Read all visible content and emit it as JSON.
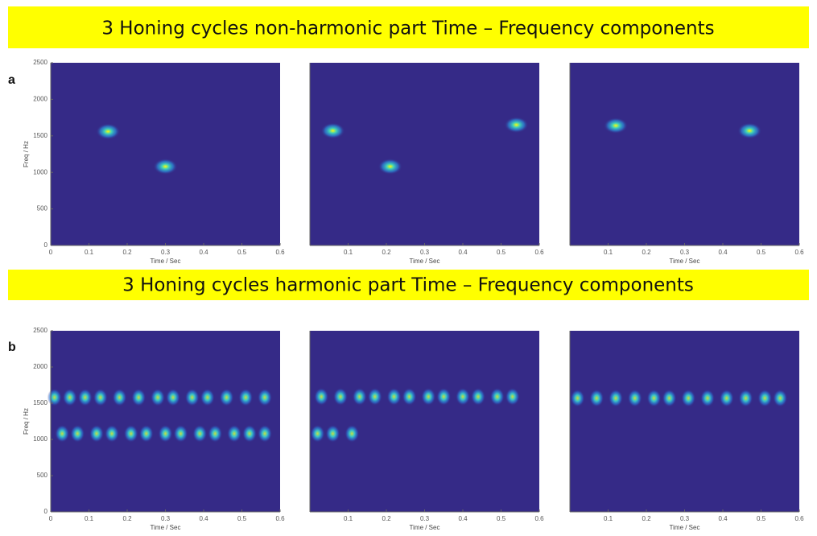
{
  "figure": {
    "rows": [
      {
        "label": "a",
        "title": "3 Honing cycles non-harmonic part Time – Frequency components"
      },
      {
        "label": "b",
        "title": "3 Honing cycles harmonic part Time – Frequency components"
      }
    ]
  },
  "chart_data": [
    {
      "type": "spectrogram",
      "xlabel": "Time / Sec",
      "ylabel": "Freq / Hz",
      "xlim": [
        0,
        0.6
      ],
      "ylim": [
        0,
        2500
      ],
      "xticks": [
        0,
        0.1,
        0.2,
        0.3,
        0.4,
        0.5,
        0.6
      ],
      "yticks": [
        0,
        500,
        1000,
        1500,
        2000,
        2500
      ],
      "peaks": {
        "x": [
          0.15,
          0.3
        ],
        "y": [
          1560,
          1080
        ]
      }
    },
    {
      "type": "spectrogram",
      "xlabel": "Time / Sec",
      "xlim": [
        0,
        0.6
      ],
      "ylim": [
        0,
        2500
      ],
      "xticks": [
        0.1,
        0.2,
        0.3,
        0.4,
        0.5,
        0.6
      ],
      "peaks": {
        "x": [
          0.06,
          0.21,
          0.54
        ],
        "y": [
          1570,
          1080,
          1650
        ]
      }
    },
    {
      "type": "spectrogram",
      "xlabel": "Time / Sec",
      "xlim": [
        0,
        0.6
      ],
      "ylim": [
        0,
        2500
      ],
      "xticks": [
        0.1,
        0.2,
        0.3,
        0.4,
        0.5,
        0.6
      ],
      "peaks": {
        "x": [
          0.12,
          0.47
        ],
        "y": [
          1640,
          1570
        ]
      }
    },
    {
      "type": "spectrogram",
      "xlabel": "Time / Sec",
      "ylabel": "Freq / Hz",
      "xlim": [
        0,
        0.6
      ],
      "ylim": [
        0,
        2500
      ],
      "xticks": [
        0,
        0.1,
        0.2,
        0.3,
        0.4,
        0.5,
        0.6
      ],
      "yticks": [
        0,
        500,
        1000,
        1500,
        2000,
        2500
      ],
      "peaks": {
        "x": [
          0.01,
          0.05,
          0.09,
          0.13,
          0.18,
          0.23,
          0.28,
          0.32,
          0.37,
          0.41,
          0.46,
          0.51,
          0.56,
          0.03,
          0.07,
          0.12,
          0.16,
          0.21,
          0.25,
          0.3,
          0.34,
          0.39,
          0.43,
          0.48,
          0.52,
          0.56
        ],
        "y": [
          1580,
          1580,
          1580,
          1580,
          1580,
          1580,
          1580,
          1580,
          1580,
          1580,
          1580,
          1580,
          1580,
          1080,
          1080,
          1080,
          1080,
          1080,
          1080,
          1080,
          1080,
          1080,
          1080,
          1080,
          1080,
          1080
        ]
      }
    },
    {
      "type": "spectrogram",
      "xlabel": "Time / Sec",
      "xlim": [
        0,
        0.6
      ],
      "ylim": [
        0,
        2500
      ],
      "xticks": [
        0.1,
        0.2,
        0.3,
        0.4,
        0.5,
        0.6
      ],
      "peaks": {
        "x": [
          0.03,
          0.08,
          0.13,
          0.17,
          0.22,
          0.26,
          0.31,
          0.35,
          0.4,
          0.44,
          0.49,
          0.53,
          0.02,
          0.06,
          0.11
        ],
        "y": [
          1590,
          1590,
          1590,
          1590,
          1590,
          1590,
          1590,
          1590,
          1590,
          1590,
          1590,
          1590,
          1080,
          1080,
          1080
        ]
      }
    },
    {
      "type": "spectrogram",
      "xlabel": "Time / Sec",
      "xlim": [
        0,
        0.6
      ],
      "ylim": [
        0,
        2500
      ],
      "xticks": [
        0.1,
        0.2,
        0.3,
        0.4,
        0.5,
        0.6
      ],
      "peaks": {
        "x": [
          0.02,
          0.07,
          0.12,
          0.17,
          0.22,
          0.26,
          0.31,
          0.36,
          0.41,
          0.46,
          0.51,
          0.55
        ],
        "y": [
          1570,
          1570,
          1570,
          1570,
          1570,
          1570,
          1570,
          1570,
          1570,
          1570,
          1570,
          1570
        ]
      }
    }
  ]
}
